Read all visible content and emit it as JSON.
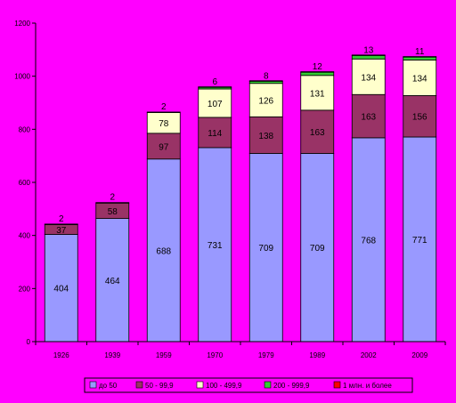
{
  "chart_data": {
    "type": "bar",
    "stacked": true,
    "categories": [
      "1926",
      "1939",
      "1959",
      "1970",
      "1979",
      "1989",
      "2002",
      "2009"
    ],
    "ylim": [
      0,
      1200
    ],
    "yticks": [
      "0",
      "200",
      "400",
      "600",
      "800",
      "1000",
      "1200"
    ],
    "grid": false,
    "legend_position": "bottom",
    "series": [
      {
        "name": "до 50",
        "color": "#9999ff",
        "values": [
          404,
          464,
          688,
          731,
          709,
          709,
          768,
          771
        ],
        "labels": [
          "404",
          "464",
          "688",
          "731",
          "709",
          "709",
          "768",
          "771"
        ]
      },
      {
        "name": "50 - 99,9",
        "color": "#993366",
        "values": [
          37,
          58,
          97,
          114,
          138,
          163,
          163,
          156
        ],
        "labels": [
          "37",
          "58",
          "97",
          "114",
          "138",
          "163",
          "163",
          "156"
        ]
      },
      {
        "name": "100 - 499,9",
        "color": "#ffffcc",
        "values": [
          0,
          0,
          78,
          107,
          126,
          131,
          134,
          134
        ],
        "labels": [
          "",
          "",
          "78",
          "107",
          "126",
          "131",
          "134",
          "134"
        ]
      },
      {
        "name": "200 - 999,9",
        "color": "#33cc33",
        "values": [
          2,
          2,
          2,
          6,
          8,
          12,
          13,
          11
        ],
        "labels": [
          "2",
          "2",
          "2",
          "6",
          "8",
          "12",
          "13",
          "11"
        ]
      },
      {
        "name": "1 млн. и более",
        "color": "#ff0000",
        "values": [
          0,
          0,
          0,
          2,
          2,
          2,
          2,
          2
        ],
        "labels": [
          "",
          "",
          "",
          "",
          "",
          "",
          "",
          ""
        ]
      }
    ]
  }
}
